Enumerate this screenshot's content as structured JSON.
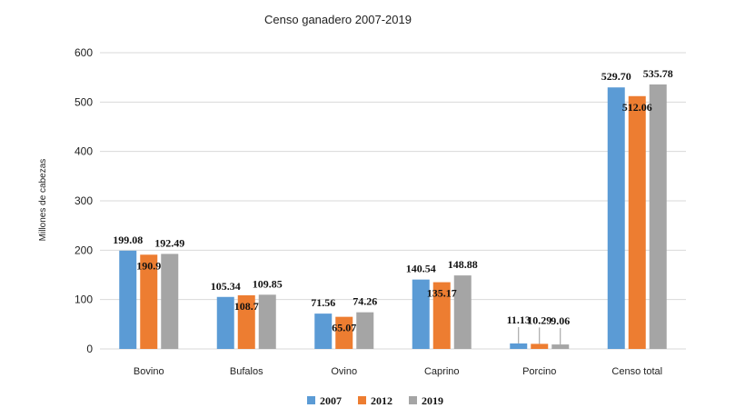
{
  "chart_data": {
    "type": "bar",
    "title": "Censo ganadero 2007-2019",
    "ylabel": "Millones de cabezas",
    "xlabel": "",
    "ylim": [
      0,
      600
    ],
    "yticks": [
      "0",
      "100",
      "200",
      "300",
      "400",
      "500",
      "600"
    ],
    "grid": true,
    "legend_position": "bottom",
    "categories": [
      "Bovino",
      "Bufalos",
      "Ovino",
      "Caprino",
      "Porcino",
      "Censo total"
    ],
    "series": [
      {
        "name": "2007",
        "color": "#5b9bd5",
        "values": [
          199.08,
          105.34,
          71.56,
          140.54,
          11.13,
          529.7
        ],
        "labels": [
          "199.08",
          "105.34",
          "71.56",
          "140.54",
          "11.13",
          "529.70"
        ]
      },
      {
        "name": "2012",
        "color": "#ed7d31",
        "values": [
          190.9,
          108.7,
          65.07,
          135.17,
          10.29,
          512.06
        ],
        "labels": [
          "190.9",
          "108.7",
          "65.07",
          "135.17",
          "10.29",
          "512.06"
        ]
      },
      {
        "name": "2019",
        "color": "#a5a5a5",
        "values": [
          192.49,
          109.85,
          74.26,
          148.88,
          9.06,
          535.78
        ],
        "labels": [
          "192.49",
          "109.85",
          "74.26",
          "148.88",
          "9.06",
          "535.78"
        ]
      }
    ]
  }
}
